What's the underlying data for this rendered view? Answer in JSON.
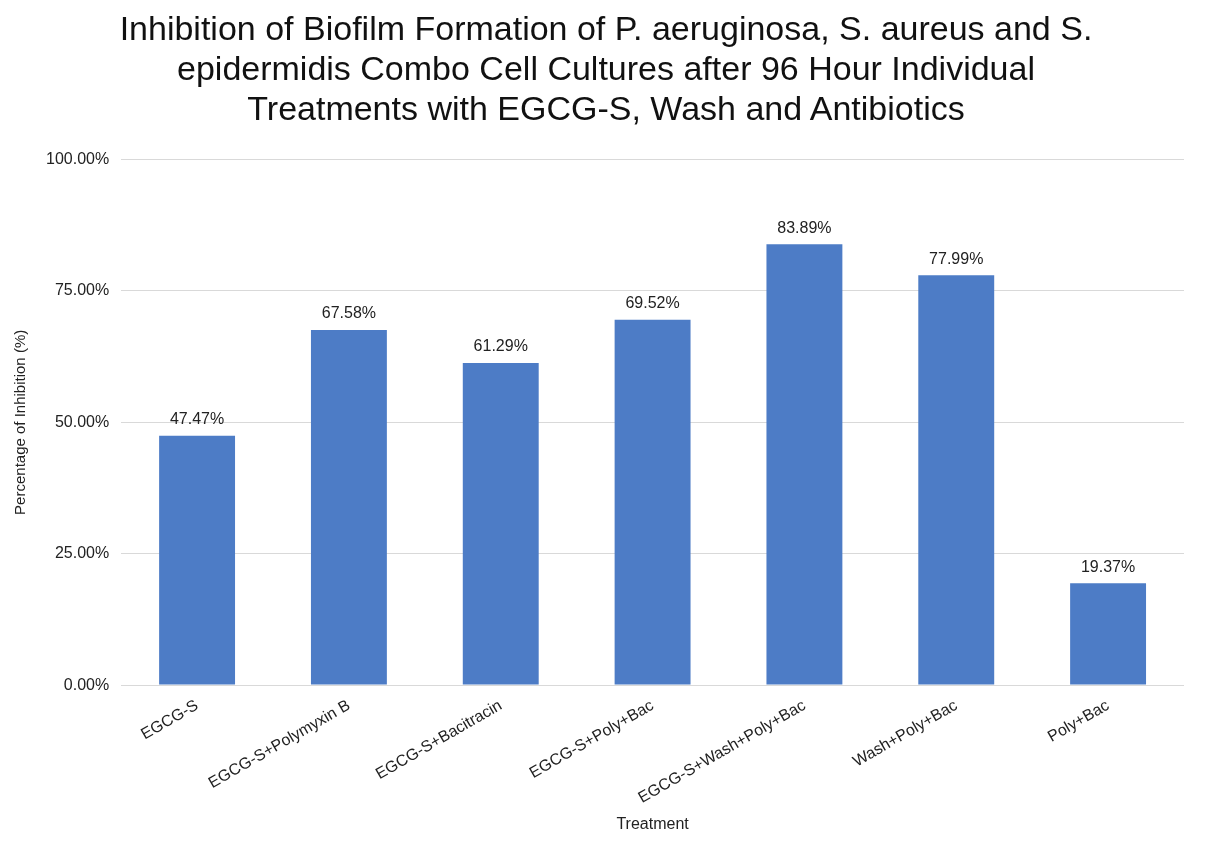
{
  "chart_data": {
    "type": "bar",
    "title": "Inhibition of Biofilm Formation of P. aeruginosa, S. aureus and S. epidermidis Combo Cell Cultures after 96 Hour Individual Treatments with EGCG-S, Wash and Antibiotics",
    "xlabel": "Treatment",
    "ylabel": "Percentage of Inhibition (%)",
    "categories": [
      "EGCG-S",
      "EGCG-S+Polymyxin B",
      "EGCG-S+Bacitracin",
      "EGCG-S+Poly+Bac",
      "EGCG-S+Wash+Poly+Bac",
      "Wash+Poly+Bac",
      "Poly+Bac"
    ],
    "values": [
      47.47,
      67.58,
      61.29,
      69.52,
      83.89,
      77.99,
      19.37
    ],
    "value_labels": [
      "47.47%",
      "67.58%",
      "61.29%",
      "69.52%",
      "83.89%",
      "77.99%",
      "19.37%"
    ],
    "color": "#4d7cc6",
    "ylim": [
      0,
      100
    ],
    "yticks": [
      {
        "value": 0,
        "label": "0.00%"
      },
      {
        "value": 25,
        "label": "25.00%"
      },
      {
        "value": 50,
        "label": "50.00%"
      },
      {
        "value": 75,
        "label": "75.00%"
      },
      {
        "value": 100,
        "label": "100.00%"
      }
    ],
    "grid": "y",
    "legend": false
  }
}
